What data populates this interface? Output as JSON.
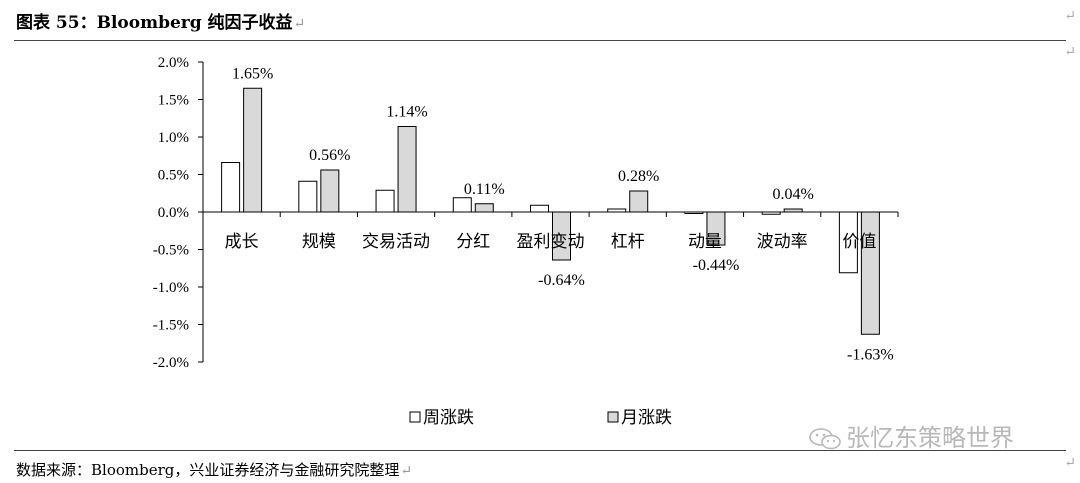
{
  "title": "图表 55：Bloomberg 纯因子收益",
  "source": "数据来源：Bloomberg，兴业证券经济与金融研究院整理",
  "watermark": "张忆东策略世界",
  "return_mark": "↵",
  "colors": {
    "weekly": "#ffffff",
    "monthly": "#d9d9d9",
    "outline": "#000000"
  },
  "chart_data": {
    "type": "bar",
    "categories": [
      "成长",
      "规模",
      "交易活动",
      "分红",
      "盈利变动",
      "杠杆",
      "动量",
      "波动率",
      "价值"
    ],
    "series": [
      {
        "name": "周涨跌",
        "values": [
          0.66,
          0.41,
          0.29,
          0.19,
          0.09,
          0.04,
          -0.02,
          -0.03,
          -0.81
        ]
      },
      {
        "name": "月涨跌",
        "values": [
          1.65,
          0.56,
          1.14,
          0.11,
          -0.64,
          0.28,
          -0.44,
          0.04,
          -1.63
        ]
      }
    ],
    "data_labels": [
      "1.65%",
      "0.56%",
      "1.14%",
      "0.11%",
      "-0.64%",
      "0.28%",
      "-0.44%",
      "0.04%",
      "-1.63%"
    ],
    "yticks": [
      2.0,
      1.5,
      1.0,
      0.5,
      0.0,
      -0.5,
      -1.0,
      -1.5,
      -2.0
    ],
    "ytick_labels": [
      "2.0%",
      "1.5%",
      "1.0%",
      "0.5%",
      "0.0%",
      "-0.5%",
      "-1.0%",
      "-1.5%",
      "-2.0%"
    ],
    "ylim": [
      -2.0,
      2.0
    ],
    "legend_position": "bottom",
    "grid": false,
    "xlabel": "",
    "ylabel": ""
  }
}
